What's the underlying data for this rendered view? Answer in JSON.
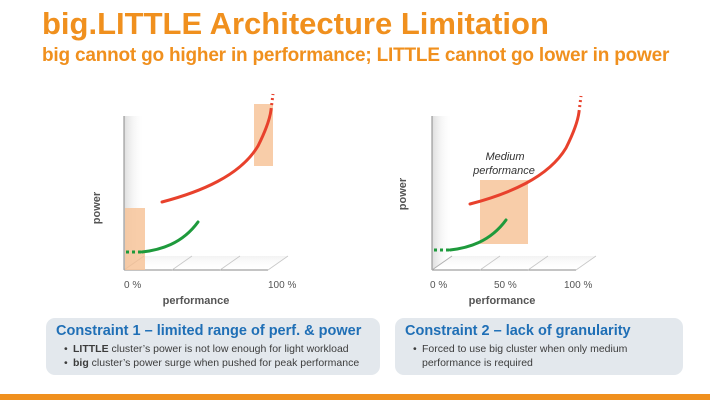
{
  "slide": {
    "title": "big.LITTLE Architecture Limitation",
    "subtitle": "big cannot go higher in performance; LITTLE cannot go lower in power"
  },
  "plot1": {
    "ylabel": "power",
    "xlabel": "performance",
    "tick_start": "0 %",
    "tick_end": "100 %"
  },
  "plot2": {
    "ylabel": "power",
    "xlabel": "performance",
    "tick_start": "0 %",
    "tick_mid": "50 %",
    "tick_end": "100 %",
    "annotation_line1": "Medium",
    "annotation_line2": "performance"
  },
  "constraint1": {
    "title": "Constraint 1 – limited range of perf. & power",
    "bullet1_bold": "LITTLE",
    "bullet1_rest": " cluster’s power is not low enough for light workload",
    "bullet2_bold": "big",
    "bullet2_rest": " cluster’s power surge when pushed for peak performance"
  },
  "constraint2": {
    "title": "Constraint 2 – lack of granularity",
    "bullet1_line1": "Forced to use big cluster when only medium",
    "bullet1_line2": "performance is required"
  },
  "colors": {
    "accent": "#f0901e",
    "constraint_title": "#1f6fb6",
    "big_curve": "#e8412c",
    "little_curve": "#1e9a3c",
    "highlight": "#f7c49a",
    "box_bg": "#e3e8ed"
  }
}
